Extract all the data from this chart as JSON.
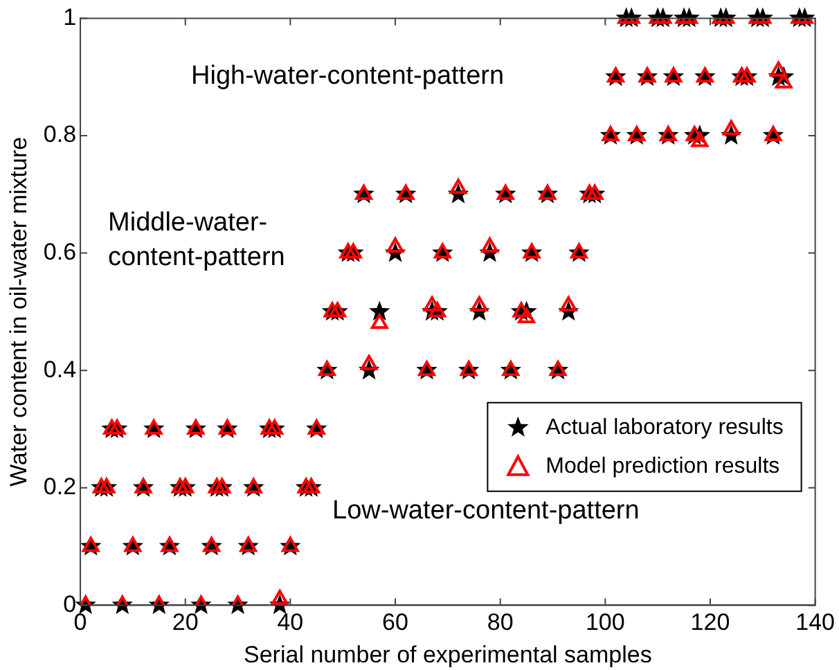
{
  "chart_data": {
    "type": "scatter",
    "xlabel": "Serial number of experimental samples",
    "ylabel": "Water content in oil-water mixture",
    "xlim": [
      0,
      140
    ],
    "xticks": [
      0,
      20,
      40,
      60,
      80,
      100,
      120,
      140
    ],
    "ylim": [
      0,
      1
    ],
    "yticks": [
      0,
      0.2,
      0.4,
      0.6,
      0.8,
      1
    ],
    "grid": false,
    "legend": "right",
    "annotations": [
      "High-water-content-pattern",
      "Middle-water-content-pattern",
      "Low-water-content-pattern"
    ],
    "x": [
      1,
      2,
      4,
      5,
      6,
      7,
      8,
      10,
      12,
      14,
      15,
      17,
      19,
      20,
      22,
      23,
      25,
      26,
      27,
      28,
      30,
      32,
      33,
      36,
      37,
      38,
      40,
      43,
      44,
      45,
      47,
      48,
      49,
      51,
      52,
      54,
      55,
      57,
      60,
      62,
      66,
      67,
      68,
      69,
      72,
      74,
      76,
      78,
      81,
      82,
      84,
      85,
      86,
      89,
      91,
      93,
      95,
      97,
      98,
      101,
      102,
      104,
      105,
      106,
      108,
      110,
      111,
      112,
      113,
      115,
      116,
      117,
      118,
      119,
      122,
      123,
      124,
      126,
      127,
      129,
      130,
      132,
      133,
      134,
      137,
      138
    ],
    "series": [
      {
        "name": "Actual laboratory results",
        "color": "#000000",
        "marker": "star",
        "values": [
          0,
          0.1,
          0.2,
          0.2,
          0.3,
          0.3,
          0,
          0.1,
          0.2,
          0.3,
          0,
          0.1,
          0.2,
          0.2,
          0.3,
          0,
          0.1,
          0.2,
          0.2,
          0.3,
          0,
          0.1,
          0.2,
          0.3,
          0.3,
          0,
          0.1,
          0.2,
          0.2,
          0.3,
          0.4,
          0.5,
          0.5,
          0.6,
          0.6,
          0.7,
          0.4,
          0.5,
          0.6,
          0.7,
          0.4,
          0.5,
          0.5,
          0.6,
          0.7,
          0.4,
          0.5,
          0.6,
          0.7,
          0.4,
          0.5,
          0.5,
          0.6,
          0.7,
          0.4,
          0.5,
          0.6,
          0.7,
          0.7,
          0.8,
          0.9,
          1,
          1,
          0.8,
          0.9,
          1,
          1,
          0.8,
          0.9,
          1,
          1,
          0.8,
          0.8,
          0.9,
          1,
          1,
          0.8,
          0.9,
          0.9,
          1,
          1,
          0.8,
          0.9,
          0.9,
          1,
          1
        ]
      },
      {
        "name": "Model prediction results",
        "color": "#ff0000",
        "marker": "triangle",
        "values": [
          0,
          0.1,
          0.2,
          0.2,
          0.3,
          0.3,
          0,
          0.1,
          0.2,
          0.3,
          0,
          0.1,
          0.2,
          0.2,
          0.3,
          0,
          0.1,
          0.2,
          0.2,
          0.3,
          0,
          0.1,
          0.2,
          0.3,
          0.3,
          0.01,
          0.1,
          0.2,
          0.2,
          0.3,
          0.4,
          0.5,
          0.5,
          0.6,
          0.6,
          0.7,
          0.41,
          0.48,
          0.61,
          0.7,
          0.4,
          0.51,
          0.5,
          0.6,
          0.71,
          0.4,
          0.51,
          0.61,
          0.7,
          0.4,
          0.5,
          0.49,
          0.6,
          0.7,
          0.4,
          0.51,
          0.6,
          0.7,
          0.7,
          0.8,
          0.9,
          1,
          1,
          0.8,
          0.9,
          1,
          1,
          0.8,
          0.9,
          1,
          1,
          0.8,
          0.79,
          0.9,
          1,
          1,
          0.81,
          0.9,
          0.9,
          1,
          1,
          0.8,
          0.91,
          0.89,
          1,
          1
        ]
      }
    ]
  }
}
